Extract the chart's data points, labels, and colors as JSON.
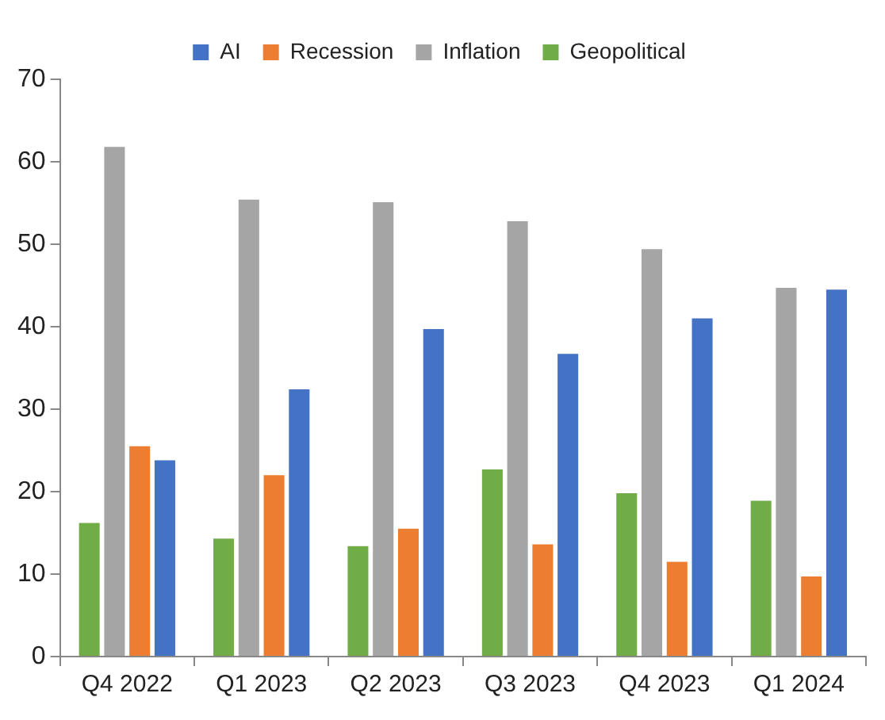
{
  "chart_data": {
    "type": "bar",
    "categories": [
      "Q4 2022",
      "Q1 2023",
      "Q2 2023",
      "Q3 2023",
      "Q4 2023",
      "Q1 2024"
    ],
    "series": [
      {
        "name": "Geopolitical",
        "color": "#70ad47",
        "values": [
          16.2,
          14.3,
          13.4,
          22.7,
          19.8,
          18.9
        ]
      },
      {
        "name": "Inflation",
        "color": "#a5a5a5",
        "values": [
          61.8,
          55.4,
          55.1,
          52.8,
          49.4,
          44.7
        ]
      },
      {
        "name": "Recession",
        "color": "#ed7d31",
        "values": [
          25.5,
          22.0,
          15.5,
          13.6,
          11.5,
          9.7
        ]
      },
      {
        "name": "AI",
        "color": "#4472c4",
        "values": [
          23.8,
          32.4,
          39.7,
          36.7,
          41.0,
          44.5
        ]
      }
    ],
    "ylim": [
      0,
      70
    ],
    "yticks": [
      0,
      10,
      20,
      30,
      40,
      50,
      60,
      70
    ],
    "grid": false,
    "legend": "top"
  }
}
